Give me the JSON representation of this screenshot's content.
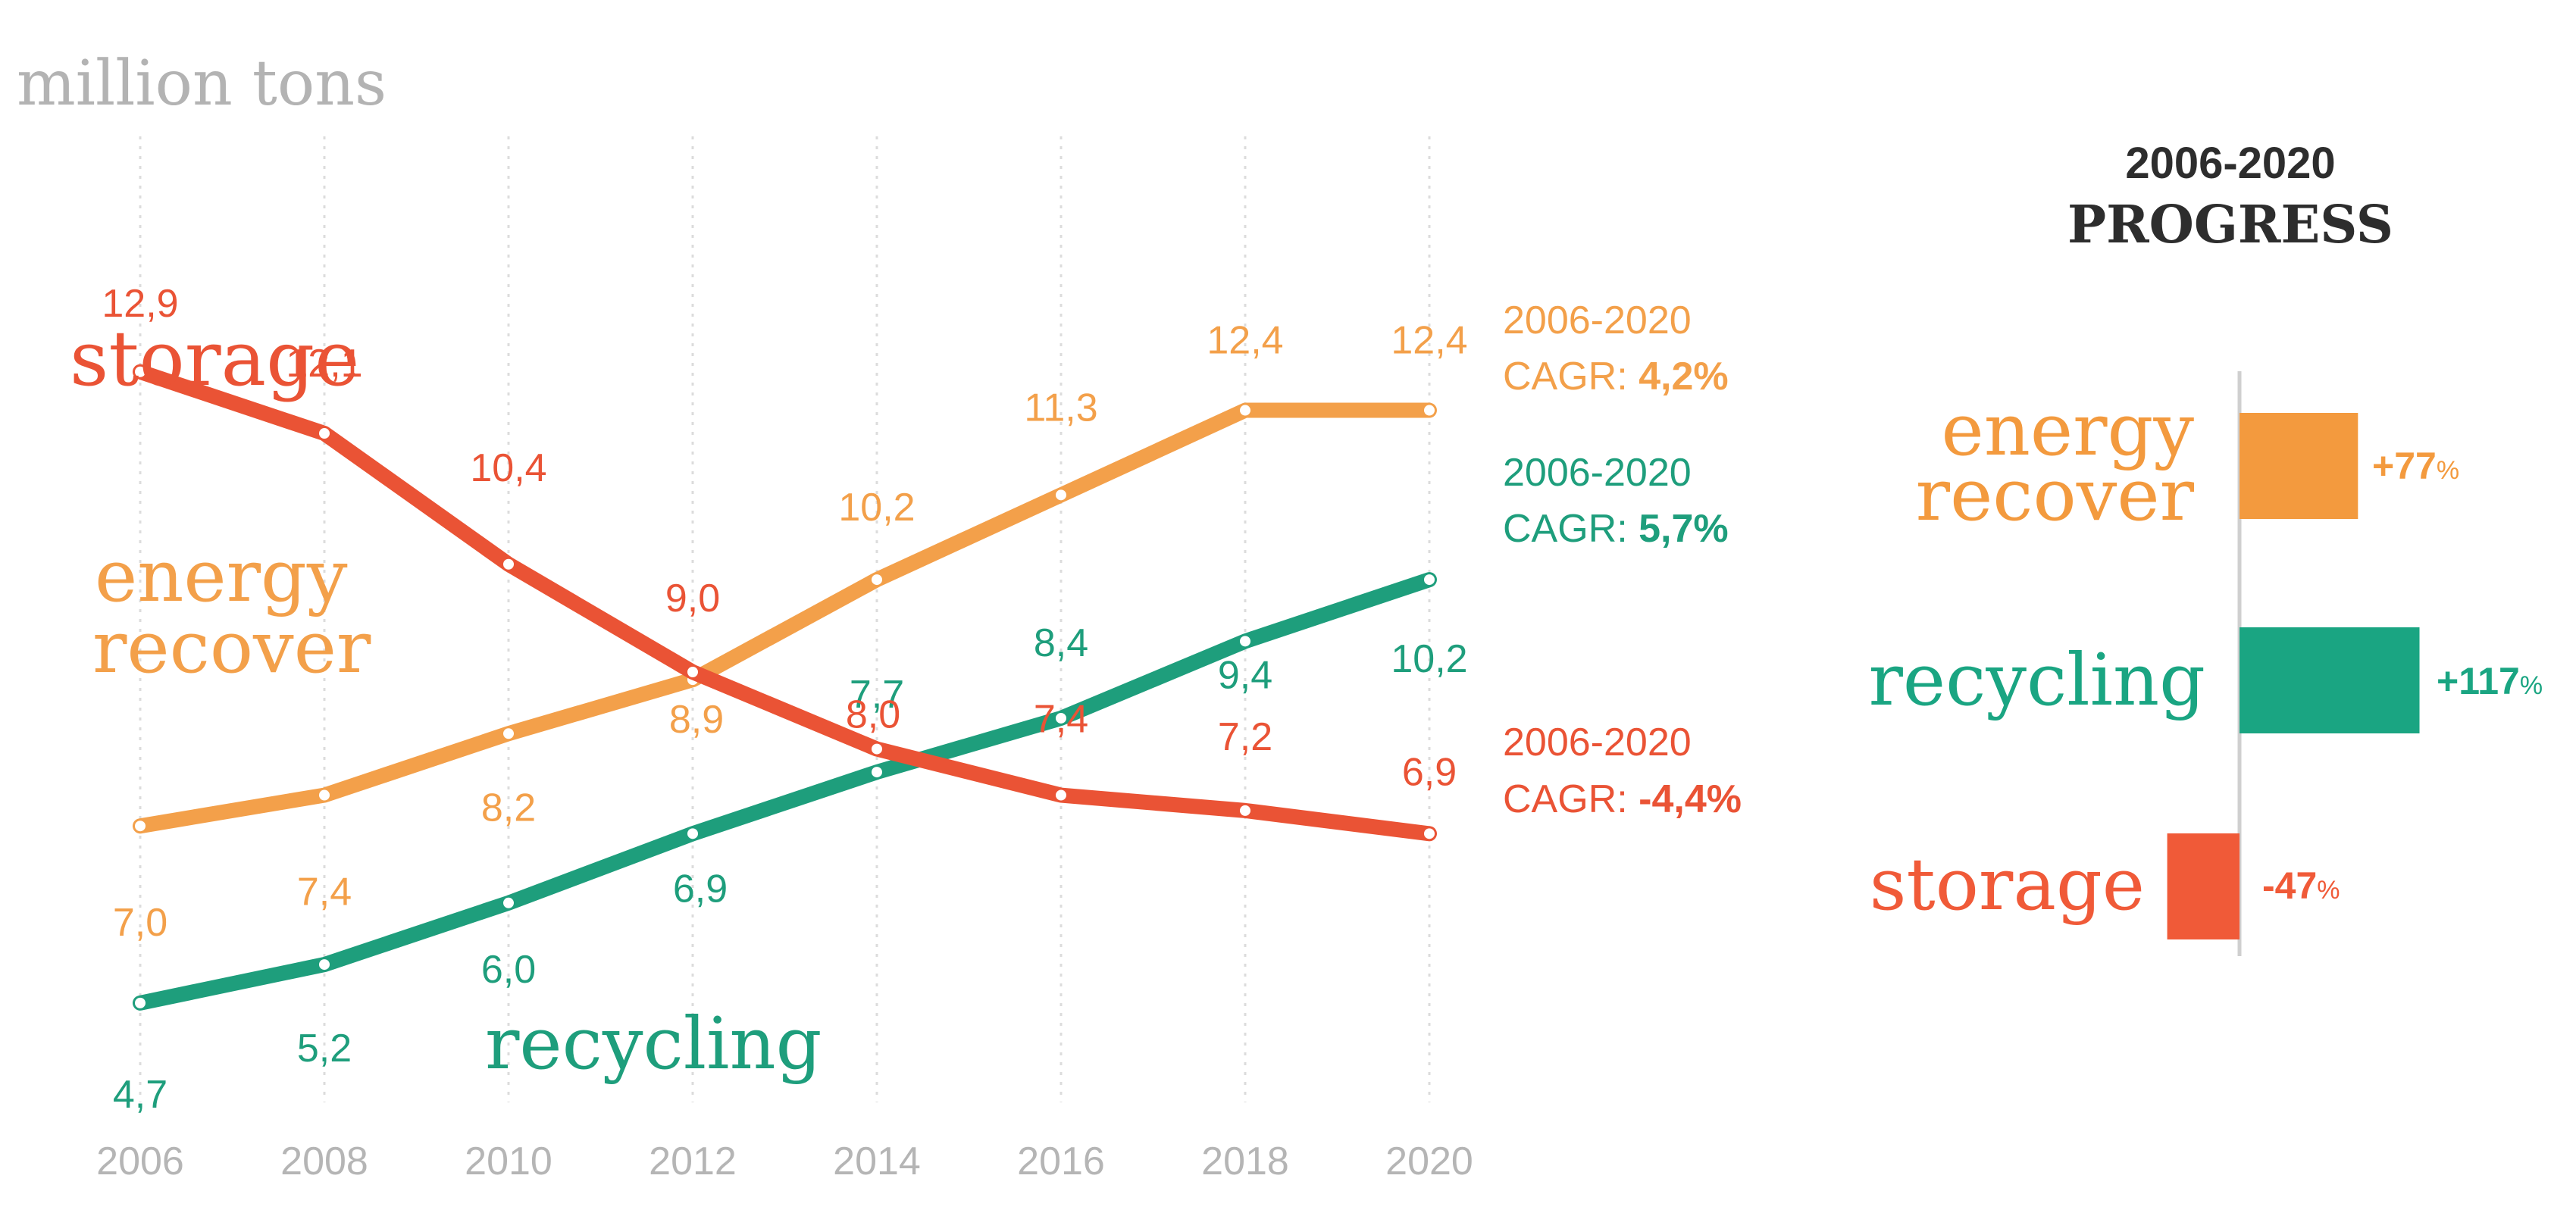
{
  "chart_data": [
    {
      "type": "line",
      "ylabel": "million tons",
      "x": [
        "2006",
        "2008",
        "2010",
        "2012",
        "2014",
        "2016",
        "2018",
        "2020"
      ],
      "ylim": [
        4,
        13.5
      ],
      "grid": "vertical dotted",
      "series": [
        {
          "key": "storage",
          "name": "storage",
          "color": "#ea5335",
          "values": [
            12.9,
            12.1,
            10.4,
            9.0,
            8.0,
            7.4,
            7.2,
            6.9
          ],
          "value_labels": [
            "12,9",
            "12,1",
            "10,4",
            "9,0",
            "8,0",
            "7,4",
            "7,2",
            "6,9"
          ],
          "cagr_period": "2006-2020",
          "cagr_prefix": "CAGR: ",
          "cagr_value": "-4,4%"
        },
        {
          "key": "energy",
          "name": "energy recover",
          "name_lines": [
            "energy",
            "recover"
          ],
          "color": "#f3a04a",
          "values": [
            7.0,
            7.4,
            8.2,
            8.9,
            10.2,
            11.3,
            12.4,
            12.4
          ],
          "value_labels": [
            "7,0",
            "7,4",
            "8,2",
            "8,9",
            "10,2",
            "11,3",
            "12,4",
            "12,4"
          ],
          "cagr_period": "2006-2020",
          "cagr_prefix": "CAGR: ",
          "cagr_value": "4,2%"
        },
        {
          "key": "recycling",
          "name": "recycling",
          "color": "#1e9e7c",
          "values": [
            4.7,
            5.2,
            6.0,
            6.9,
            7.7,
            8.4,
            9.4,
            10.2
          ],
          "value_labels": [
            "4,7",
            "5,2",
            "6,0",
            "6,9",
            "7,7",
            "8,4",
            "9,4",
            "10,2"
          ],
          "cagr_period": "2006-2020",
          "cagr_prefix": "CAGR: ",
          "cagr_value": "5,7%"
        }
      ]
    },
    {
      "type": "bar",
      "orientation": "horizontal",
      "title_line1": "2006-2020",
      "title_line2": "PROGRESS",
      "unit": "%",
      "categories": [
        "energy recover",
        "recycling",
        "storage"
      ],
      "category_lines": [
        [
          "energy",
          "recover"
        ],
        [
          "recycling"
        ],
        [
          "storage"
        ]
      ],
      "values": [
        77,
        117,
        -47
      ],
      "value_labels": [
        "+77",
        "+117",
        "-47"
      ],
      "colors": [
        "#f39a3e",
        "#1aa582",
        "#f05a38"
      ]
    }
  ]
}
